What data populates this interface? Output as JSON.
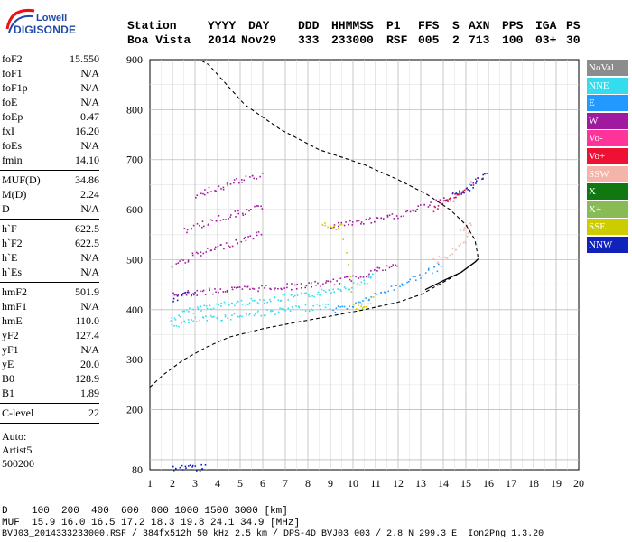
{
  "logo": {
    "line1": "Lowell",
    "line2": "DIGISONDE"
  },
  "header": {
    "labels": [
      {
        "text": "Station"
      },
      {
        "text": "YYYY"
      },
      {
        "text": "DAY"
      },
      {
        "text": "DDD"
      },
      {
        "text": "HHMMSS"
      },
      {
        "text": "P1"
      },
      {
        "text": "FFS"
      },
      {
        "text": "S"
      },
      {
        "text": "AXN"
      },
      {
        "text": "PPS"
      },
      {
        "text": "IGA"
      },
      {
        "text": "PS"
      }
    ],
    "values": [
      {
        "text": "Boa Vista"
      },
      {
        "text": "2014"
      },
      {
        "text": "Nov29"
      },
      {
        "text": "333"
      },
      {
        "text": "233000"
      },
      {
        "text": "RSF"
      },
      {
        "text": "005"
      },
      {
        "text": "2"
      },
      {
        "text": "713"
      },
      {
        "text": "100"
      },
      {
        "text": "03+"
      },
      {
        "text": "30"
      }
    ]
  },
  "params": {
    "group1": [
      {
        "label": "foF2",
        "value": "15.550"
      },
      {
        "label": "foF1",
        "value": "N/A"
      },
      {
        "label": "foF1p",
        "value": "N/A"
      },
      {
        "label": "foE",
        "value": "N/A"
      },
      {
        "label": "foEp",
        "value": "0.47"
      },
      {
        "label": "fxI",
        "value": "16.20"
      },
      {
        "label": "foEs",
        "value": "N/A"
      },
      {
        "label": "fmin",
        "value": "14.10"
      }
    ],
    "group2": [
      {
        "label": "MUF(D)",
        "value": "34.86"
      },
      {
        "label": "M(D)",
        "value": "2.24"
      },
      {
        "label": "D",
        "value": "N/A"
      }
    ],
    "group3": [
      {
        "label": "h`F",
        "value": "622.5"
      },
      {
        "label": "h`F2",
        "value": "622.5"
      },
      {
        "label": "h`E",
        "value": "N/A"
      },
      {
        "label": "h`Es",
        "value": "N/A"
      }
    ],
    "group4": [
      {
        "label": "hmF2",
        "value": "501.9"
      },
      {
        "label": "hmF1",
        "value": "N/A"
      },
      {
        "label": "hmE",
        "value": "110.0"
      },
      {
        "label": "yF2",
        "value": "127.4"
      },
      {
        "label": "yF1",
        "value": "N/A"
      },
      {
        "label": "yE",
        "value": "20.0"
      },
      {
        "label": "B0",
        "value": "128.9"
      },
      {
        "label": "B1",
        "value": "1.89"
      }
    ],
    "group5": [
      {
        "label": "C-level",
        "value": "22"
      }
    ],
    "auto_lines": [
      "Auto:",
      "Artist5",
      "500200"
    ]
  },
  "legend": [
    {
      "label": "NoVal",
      "color": "#8c8c8c"
    },
    {
      "label": "NNE",
      "color": "#33ddee"
    },
    {
      "label": "E",
      "color": "#2299ff"
    },
    {
      "label": "W",
      "color": "#a01aa0"
    },
    {
      "label": "Vo-",
      "color": "#ff3399"
    },
    {
      "label": "Vo+",
      "color": "#ee1133"
    },
    {
      "label": "SSW",
      "color": "#f5b4aa"
    },
    {
      "label": "X-",
      "color": "#117711"
    },
    {
      "label": "X+",
      "color": "#88bb55"
    },
    {
      "label": "SSE",
      "color": "#cccc00"
    },
    {
      "label": "NNW",
      "color": "#1122bb"
    }
  ],
  "footer": {
    "line1": "D    100  200  400  600  800 1000 1500 3000 [km]",
    "line2": "MUF  15.9 16.0 16.5 17.2 18.3 19.8 24.1 34.9 [MHz]",
    "line3": "BVJ03_2014333233000.RSF / 384fx512h 50 kHz 2.5 km / DPS-4D BVJ03 003 / 2.8 N 299.3 E  Ion2Png 1.3.20"
  },
  "chart_data": {
    "type": "scatter",
    "xlim": [
      1,
      20
    ],
    "ylim": [
      80,
      900
    ],
    "x_ticks": [
      1,
      2,
      3,
      4,
      5,
      6,
      7,
      8,
      9,
      10,
      11,
      12,
      13,
      14,
      15,
      16,
      17,
      18,
      19,
      20
    ],
    "y_ticks": [
      100,
      200,
      300,
      400,
      500,
      600,
      700,
      800,
      900
    ],
    "y_tick_labels": [
      "",
      "200",
      "300",
      "400",
      "500",
      "600",
      "700",
      "800",
      "900"
    ],
    "y_bottom_label": "80",
    "profile_curve": {
      "style": "dashed",
      "points": [
        [
          1.0,
          245
        ],
        [
          1.6,
          270
        ],
        [
          2.5,
          300
        ],
        [
          3.5,
          325
        ],
        [
          4.5,
          345
        ],
        [
          6,
          362
        ],
        [
          7.5,
          375
        ],
        [
          9,
          387
        ],
        [
          10.5,
          400
        ],
        [
          12,
          415
        ],
        [
          13,
          430
        ],
        [
          14,
          455
        ],
        [
          14.8,
          475
        ],
        [
          15.4,
          495
        ],
        [
          15.55,
          502
        ],
        [
          15.4,
          540
        ],
        [
          15,
          570
        ],
        [
          14.3,
          600
        ],
        [
          13.3,
          630
        ],
        [
          12,
          660
        ],
        [
          10.5,
          690
        ],
        [
          8.5,
          720
        ],
        [
          6.8,
          760
        ],
        [
          5.2,
          810
        ],
        [
          4.2,
          860
        ],
        [
          3.6,
          890
        ],
        [
          3.2,
          900
        ]
      ]
    },
    "solid_segment": {
      "points": [
        [
          13.2,
          440
        ],
        [
          14,
          458
        ],
        [
          14.8,
          475
        ],
        [
          15.4,
          495
        ],
        [
          15.55,
          502
        ]
      ]
    },
    "traces": [
      {
        "series": "NNE",
        "points": [
          [
            1.9,
            380
          ],
          [
            2.5,
            395
          ],
          [
            3.2,
            405
          ],
          [
            4,
            410
          ],
          [
            5,
            415
          ],
          [
            6,
            420
          ],
          [
            7,
            425
          ],
          [
            8,
            430
          ],
          [
            9,
            440
          ],
          [
            10,
            450
          ],
          [
            10.6,
            460
          ],
          [
            11,
            470
          ]
        ]
      },
      {
        "series": "NNE",
        "points": [
          [
            2,
            370
          ],
          [
            3,
            380
          ],
          [
            4,
            385
          ],
          [
            5,
            390
          ],
          [
            6,
            395
          ],
          [
            7,
            400
          ],
          [
            8,
            405
          ],
          [
            9,
            410
          ]
        ]
      },
      {
        "series": "E",
        "points": [
          [
            9,
            400
          ],
          [
            10,
            410
          ],
          [
            11,
            430
          ],
          [
            12,
            450
          ],
          [
            13,
            470
          ],
          [
            14,
            490
          ]
        ]
      },
      {
        "series": "W",
        "points": [
          [
            2,
            430
          ],
          [
            3,
            435
          ],
          [
            4,
            440
          ],
          [
            5,
            442
          ],
          [
            6,
            445
          ],
          [
            7,
            447
          ],
          [
            8,
            450
          ],
          [
            9,
            455
          ],
          [
            10,
            465
          ],
          [
            11,
            480
          ],
          [
            12,
            490
          ]
        ]
      },
      {
        "series": "W",
        "points": [
          [
            2,
            490
          ],
          [
            3,
            510
          ],
          [
            4,
            525
          ],
          [
            5,
            540
          ],
          [
            6,
            555
          ]
        ]
      },
      {
        "series": "W",
        "points": [
          [
            2.5,
            560
          ],
          [
            3.5,
            575
          ],
          [
            4.5,
            590
          ],
          [
            5.5,
            600
          ],
          [
            6,
            610
          ]
        ]
      },
      {
        "series": "W",
        "points": [
          [
            3,
            630
          ],
          [
            4,
            645
          ],
          [
            5,
            660
          ],
          [
            6,
            670
          ]
        ]
      },
      {
        "series": "W",
        "points": [
          [
            9,
            570
          ],
          [
            10,
            575
          ],
          [
            11,
            580
          ],
          [
            12,
            590
          ],
          [
            13,
            605
          ],
          [
            14,
            620
          ],
          [
            15,
            645
          ],
          [
            15.8,
            670
          ]
        ]
      },
      {
        "series": "NNW",
        "points": [
          [
            14,
            620
          ],
          [
            14.5,
            630
          ],
          [
            15,
            640
          ],
          [
            15.5,
            655
          ],
          [
            16,
            680
          ]
        ]
      },
      {
        "series": "NNW",
        "points": [
          [
            2,
            420
          ],
          [
            2.5,
            430
          ],
          [
            3,
            440
          ]
        ]
      },
      {
        "series": "SSW",
        "points": [
          [
            14.8,
            560
          ],
          [
            15.2,
            570
          ],
          [
            15,
            540
          ],
          [
            14.5,
            520
          ],
          [
            14,
            505
          ],
          [
            13.5,
            495
          ]
        ]
      },
      {
        "series": "SSE",
        "points": [
          [
            8.5,
            570
          ],
          [
            9,
            565
          ],
          [
            9.5,
            568
          ],
          [
            10,
            410
          ],
          [
            10.5,
            405
          ],
          [
            11,
            430
          ]
        ]
      },
      {
        "series": "Vo+",
        "points": [
          [
            13.5,
            600
          ],
          [
            14,
            615
          ],
          [
            15,
            640
          ]
        ]
      },
      {
        "series": "NNW",
        "points": [
          [
            2,
            85
          ],
          [
            2.5,
            85
          ],
          [
            3,
            85
          ],
          [
            3.5,
            85
          ]
        ]
      }
    ]
  }
}
